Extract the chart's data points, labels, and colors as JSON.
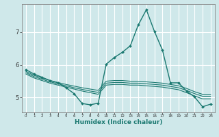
{
  "title": "",
  "xlabel": "Humidex (Indice chaleur)",
  "ylabel": "",
  "xlim": [
    -0.5,
    23.5
  ],
  "ylim": [
    4.55,
    7.85
  ],
  "yticks": [
    5,
    6,
    7
  ],
  "xticks": [
    0,
    1,
    2,
    3,
    4,
    5,
    6,
    7,
    8,
    9,
    10,
    11,
    12,
    13,
    14,
    15,
    16,
    17,
    18,
    19,
    20,
    21,
    22,
    23
  ],
  "bg_color": "#cfe8ea",
  "grid_color": "#ffffff",
  "line_color": "#1a7870",
  "lines": [
    {
      "x": [
        0,
        1,
        2,
        3,
        4,
        5,
        6,
        7,
        8,
        9,
        10,
        11,
        12,
        13,
        14,
        15,
        16,
        17,
        18,
        19,
        20,
        21,
        22,
        23
      ],
      "y": [
        5.85,
        5.72,
        5.62,
        5.52,
        5.45,
        5.3,
        5.12,
        4.82,
        4.78,
        4.83,
        6.02,
        6.22,
        6.38,
        6.58,
        7.22,
        7.68,
        7.02,
        6.45,
        5.45,
        5.45,
        5.2,
        5.02,
        4.72,
        4.8
      ],
      "marker": "D",
      "markersize": 2.0,
      "linewidth": 1.0
    },
    {
      "x": [
        0,
        1,
        2,
        3,
        4,
        5,
        6,
        7,
        8,
        9,
        10,
        11,
        12,
        13,
        14,
        15,
        16,
        17,
        18,
        19,
        20,
        21,
        22,
        23
      ],
      "y": [
        5.8,
        5.68,
        5.6,
        5.52,
        5.46,
        5.4,
        5.35,
        5.3,
        5.26,
        5.22,
        5.5,
        5.52,
        5.52,
        5.5,
        5.5,
        5.48,
        5.46,
        5.44,
        5.4,
        5.36,
        5.28,
        5.18,
        5.1,
        5.1
      ],
      "marker": null,
      "markersize": 0,
      "linewidth": 0.8
    },
    {
      "x": [
        0,
        1,
        2,
        3,
        4,
        5,
        6,
        7,
        8,
        9,
        10,
        11,
        12,
        13,
        14,
        15,
        16,
        17,
        18,
        19,
        20,
        21,
        22,
        23
      ],
      "y": [
        5.76,
        5.64,
        5.56,
        5.48,
        5.42,
        5.36,
        5.3,
        5.25,
        5.2,
        5.16,
        5.44,
        5.46,
        5.46,
        5.44,
        5.44,
        5.42,
        5.4,
        5.38,
        5.34,
        5.3,
        5.22,
        5.12,
        5.04,
        5.04
      ],
      "marker": null,
      "markersize": 0,
      "linewidth": 0.8
    },
    {
      "x": [
        0,
        1,
        2,
        3,
        4,
        5,
        6,
        7,
        8,
        9,
        10,
        11,
        12,
        13,
        14,
        15,
        16,
        17,
        18,
        19,
        20,
        21,
        22,
        23
      ],
      "y": [
        5.72,
        5.6,
        5.52,
        5.44,
        5.38,
        5.32,
        5.26,
        5.2,
        5.15,
        5.1,
        5.38,
        5.4,
        5.4,
        5.38,
        5.38,
        5.36,
        5.34,
        5.32,
        5.28,
        5.24,
        5.15,
        5.05,
        4.96,
        4.96
      ],
      "marker": null,
      "markersize": 0,
      "linewidth": 0.8
    }
  ]
}
